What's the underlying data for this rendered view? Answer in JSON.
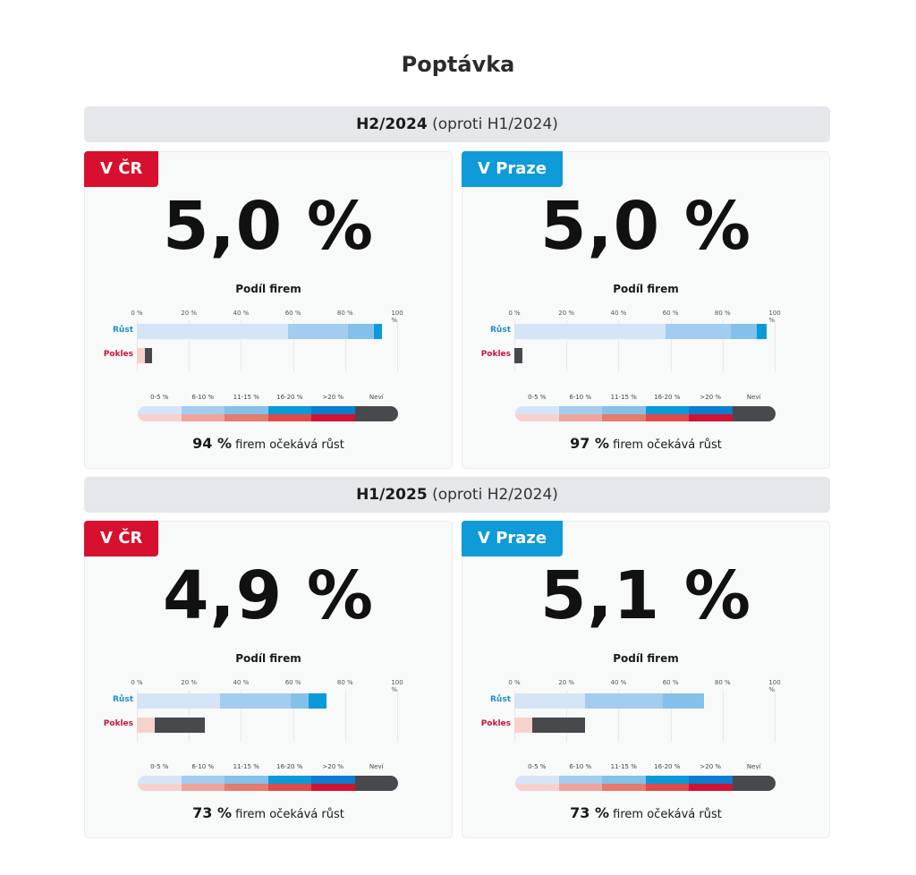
{
  "title": "Poptávka",
  "legend": {
    "labels": [
      "0-5 %",
      "6-10 %",
      "11-15 %",
      "16-20 %",
      ">20 %",
      "Neví"
    ],
    "growth_colors": [
      "#d5e5f7",
      "#a3cdef",
      "#84c1ea",
      "#0a9ad8",
      "#0a7dd0",
      "#48494d"
    ],
    "decline_colors": [
      "#f6d2cc",
      "#eea59b",
      "#e57a6e",
      "#e04a4a",
      "#d11230",
      "#48494d"
    ]
  },
  "axis_ticks": [
    "0 %",
    "20 %",
    "40 %",
    "60 %",
    "80 %",
    "100 %"
  ],
  "row_labels": {
    "growth": "Růst",
    "decline": "Pokles"
  },
  "subtitle": "Podíl firem",
  "footer_suffix": "firem očekává růst",
  "colors": {
    "cr": "#d7102f",
    "praha": "#0f9ad8"
  },
  "periods": [
    {
      "label": "H2/2024",
      "compare": "(oproti H1/2024)"
    },
    {
      "label": "H1/2025",
      "compare": "(oproti H2/2024)"
    }
  ],
  "chart_data": [
    {
      "type": "bar",
      "stacked": true,
      "title": "H2/2024 V ČR",
      "badge": "V ČR",
      "value": "5,0 %",
      "footer_pct": "94 %",
      "categories": [
        "Růst",
        "Pokles"
      ],
      "xlim": [
        0,
        100
      ],
      "series": {
        "growth": [
          58,
          23,
          10,
          3,
          0,
          0
        ],
        "decline": [
          3,
          0,
          0,
          0,
          0,
          3
        ]
      }
    },
    {
      "type": "bar",
      "stacked": true,
      "title": "H2/2024 V Praze",
      "badge": "V Praze",
      "value": "5,0 %",
      "footer_pct": "97 %",
      "categories": [
        "Růst",
        "Pokles"
      ],
      "xlim": [
        0,
        100
      ],
      "series": {
        "growth": [
          58,
          25,
          10,
          4,
          0,
          0
        ],
        "decline": [
          0,
          0,
          0,
          0,
          0,
          3
        ]
      }
    },
    {
      "type": "bar",
      "stacked": true,
      "title": "H1/2025 V ČR",
      "badge": "V ČR",
      "value": "4,9 %",
      "footer_pct": "73 %",
      "categories": [
        "Růst",
        "Pokles"
      ],
      "xlim": [
        0,
        100
      ],
      "series": {
        "growth": [
          32,
          27,
          7,
          7,
          0,
          0
        ],
        "decline": [
          7,
          0,
          0,
          0,
          0,
          19
        ]
      }
    },
    {
      "type": "bar",
      "stacked": true,
      "title": "H1/2025 V Praze",
      "badge": "V Praze",
      "value": "5,1 %",
      "footer_pct": "73 %",
      "categories": [
        "Růst",
        "Pokles"
      ],
      "xlim": [
        0,
        100
      ],
      "series": {
        "growth": [
          27,
          30,
          16,
          0,
          0,
          0
        ],
        "decline": [
          7,
          0,
          0,
          0,
          0,
          20
        ]
      }
    }
  ]
}
